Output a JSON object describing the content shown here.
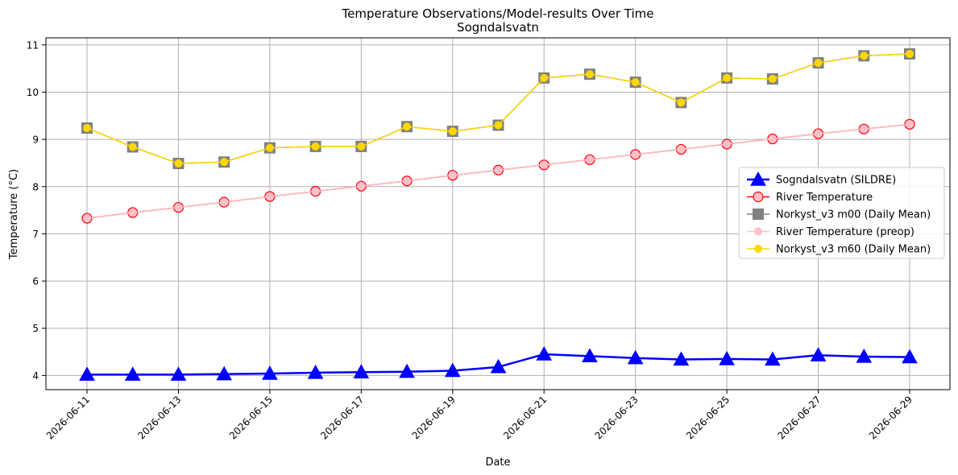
{
  "chart_data": {
    "type": "line",
    "title": "Temperature Observations/Model-results Over Time",
    "subtitle": "Sogndalsvatn",
    "xlabel": "Date",
    "ylabel": "Temperature (°C)",
    "x": [
      "2026-06-11",
      "2026-06-12",
      "2026-06-13",
      "2026-06-14",
      "2026-06-15",
      "2026-06-16",
      "2026-06-17",
      "2026-06-18",
      "2026-06-19",
      "2026-06-20",
      "2026-06-21",
      "2026-06-22",
      "2026-06-23",
      "2026-06-24",
      "2026-06-25",
      "2026-06-26",
      "2026-06-27",
      "2026-06-28",
      "2026-06-29"
    ],
    "xtick_labels": [
      "2026-06-11",
      "2026-06-13",
      "2026-06-15",
      "2026-06-17",
      "2026-06-19",
      "2026-06-21",
      "2026-06-23",
      "2026-06-25",
      "2026-06-27",
      "2026-06-29"
    ],
    "ylim": [
      3.7,
      11.15
    ],
    "yticks": [
      4,
      5,
      6,
      7,
      8,
      9,
      10,
      11
    ],
    "grid": true,
    "legend_position": "center-right",
    "series": [
      {
        "name": "Sogndalsvatn (SILDRE)",
        "color": "#0000ff",
        "marker": "triangle",
        "values": [
          4.02,
          4.02,
          4.02,
          4.03,
          4.04,
          4.06,
          4.07,
          4.08,
          4.1,
          4.18,
          4.45,
          4.41,
          4.37,
          4.34,
          4.35,
          4.34,
          4.43,
          4.4,
          4.39
        ]
      },
      {
        "name": "River Temperature",
        "color": "#ff0000",
        "marker": "circle",
        "values": [
          7.33,
          7.45,
          7.56,
          7.67,
          7.79,
          7.9,
          8.01,
          8.12,
          8.24,
          8.35,
          8.46,
          8.57,
          8.68,
          8.79,
          8.9,
          9.01,
          9.12,
          9.22,
          9.32
        ]
      },
      {
        "name": "Norkyst_v3 m00 (Daily Mean)",
        "color": "#808080",
        "marker": "square",
        "values": [
          9.24,
          8.84,
          8.49,
          8.52,
          8.82,
          8.85,
          8.85,
          9.27,
          9.17,
          9.3,
          10.3,
          10.38,
          10.21,
          9.78,
          10.3,
          10.28,
          10.62,
          10.77,
          10.81
        ]
      },
      {
        "name": "River Temperature (preop)",
        "color": "#ffc0cb",
        "marker": "circle-small",
        "values": [
          7.33,
          7.45,
          7.56,
          7.67,
          7.79,
          7.9,
          8.01,
          8.12,
          8.24,
          8.35,
          8.46,
          8.57,
          8.68,
          8.79,
          8.9,
          9.01,
          9.12,
          9.22,
          9.32
        ]
      },
      {
        "name": "Norkyst_v3 m60 (Daily Mean)",
        "color": "#ffd700",
        "marker": "circle-small",
        "values": [
          9.24,
          8.84,
          8.49,
          8.52,
          8.82,
          8.85,
          8.85,
          9.27,
          9.17,
          9.3,
          10.3,
          10.38,
          10.21,
          9.78,
          10.3,
          10.28,
          10.62,
          10.77,
          10.81
        ]
      }
    ]
  }
}
